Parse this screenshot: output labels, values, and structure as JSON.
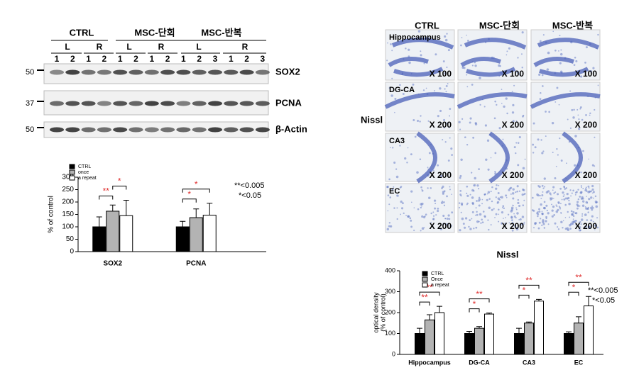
{
  "blot": {
    "groups": [
      "CTRL",
      "MSC-단회",
      "MSC-반복"
    ],
    "sides": [
      "L",
      "R",
      "L",
      "R",
      "L",
      "R"
    ],
    "lanes": [
      "1",
      "2",
      "1",
      "2",
      "1",
      "2",
      "1",
      "2",
      "1",
      "2",
      "3",
      "1",
      "2",
      "3"
    ],
    "rows": [
      {
        "marker": "50",
        "name": "SOX2"
      },
      {
        "marker": "37",
        "name": "PCNA"
      },
      {
        "marker": "50",
        "name": "β-Actin"
      }
    ]
  },
  "micrographs": {
    "stain": "Nissl",
    "columns": [
      "CTRL",
      "MSC-단회",
      "MSC-반복"
    ],
    "rows": [
      {
        "label": "Hippocampus",
        "magnifications": [
          "X 100",
          "X 100",
          "X 100"
        ]
      },
      {
        "label": "DG-CA",
        "magnifications": [
          "X 200",
          "X 200",
          "X 200"
        ]
      },
      {
        "label": "CA3",
        "magnifications": [
          "X 200",
          "X 200",
          "X 200"
        ]
      },
      {
        "label": "EC",
        "magnifications": [
          "X 200",
          "X 200",
          "X 200"
        ]
      }
    ]
  },
  "chart_data": [
    {
      "type": "bar",
      "categories": [
        "SOX2",
        "PCNA"
      ],
      "series": [
        {
          "name": "CTRL",
          "color": "#000000",
          "values": [
            100,
            100
          ],
          "errors": [
            40,
            22
          ]
        },
        {
          "name": "once",
          "color": "#b3b3b3",
          "values": [
            163,
            137
          ],
          "errors": [
            25,
            35
          ]
        },
        {
          "name": "a repeat",
          "color": "#ffffff",
          "values": [
            145,
            147
          ],
          "errors": [
            62,
            48
          ]
        }
      ],
      "y_label": [
        "% of control"
      ],
      "ylim": [
        0,
        300
      ],
      "yticks": [
        0,
        50,
        100,
        150,
        200,
        250,
        300
      ],
      "significance": [
        [
          "**",
          "*"
        ],
        [
          "*",
          "*"
        ]
      ],
      "notes": [
        "**<0.005",
        "*<0.05"
      ]
    },
    {
      "type": "bar",
      "title": "Nissl",
      "categories": [
        "Hippocampus",
        "DG-CA",
        "CA3",
        "EC"
      ],
      "series": [
        {
          "name": "CTRL",
          "color": "#000000",
          "values": [
            100,
            100,
            100,
            100
          ],
          "errors": [
            25,
            10,
            25,
            8
          ]
        },
        {
          "name": "Once",
          "color": "#b3b3b3",
          "values": [
            165,
            125,
            150,
            150
          ],
          "errors": [
            25,
            8,
            5,
            30
          ]
        },
        {
          "name": "a repeat",
          "color": "#ffffff",
          "values": [
            200,
            193,
            255,
            232
          ],
          "errors": [
            30,
            5,
            8,
            45
          ]
        }
      ],
      "y_label": [
        "optical density",
        "(% of control)"
      ],
      "ylim": [
        0,
        400
      ],
      "yticks": [
        0,
        100,
        200,
        300,
        400
      ],
      "significance": [
        [
          "**",
          "**"
        ],
        [
          "*",
          "**"
        ],
        [
          "*",
          "**"
        ],
        [
          "*",
          "**"
        ]
      ],
      "notes": [
        "**<0.005",
        "*<0.05"
      ]
    }
  ]
}
